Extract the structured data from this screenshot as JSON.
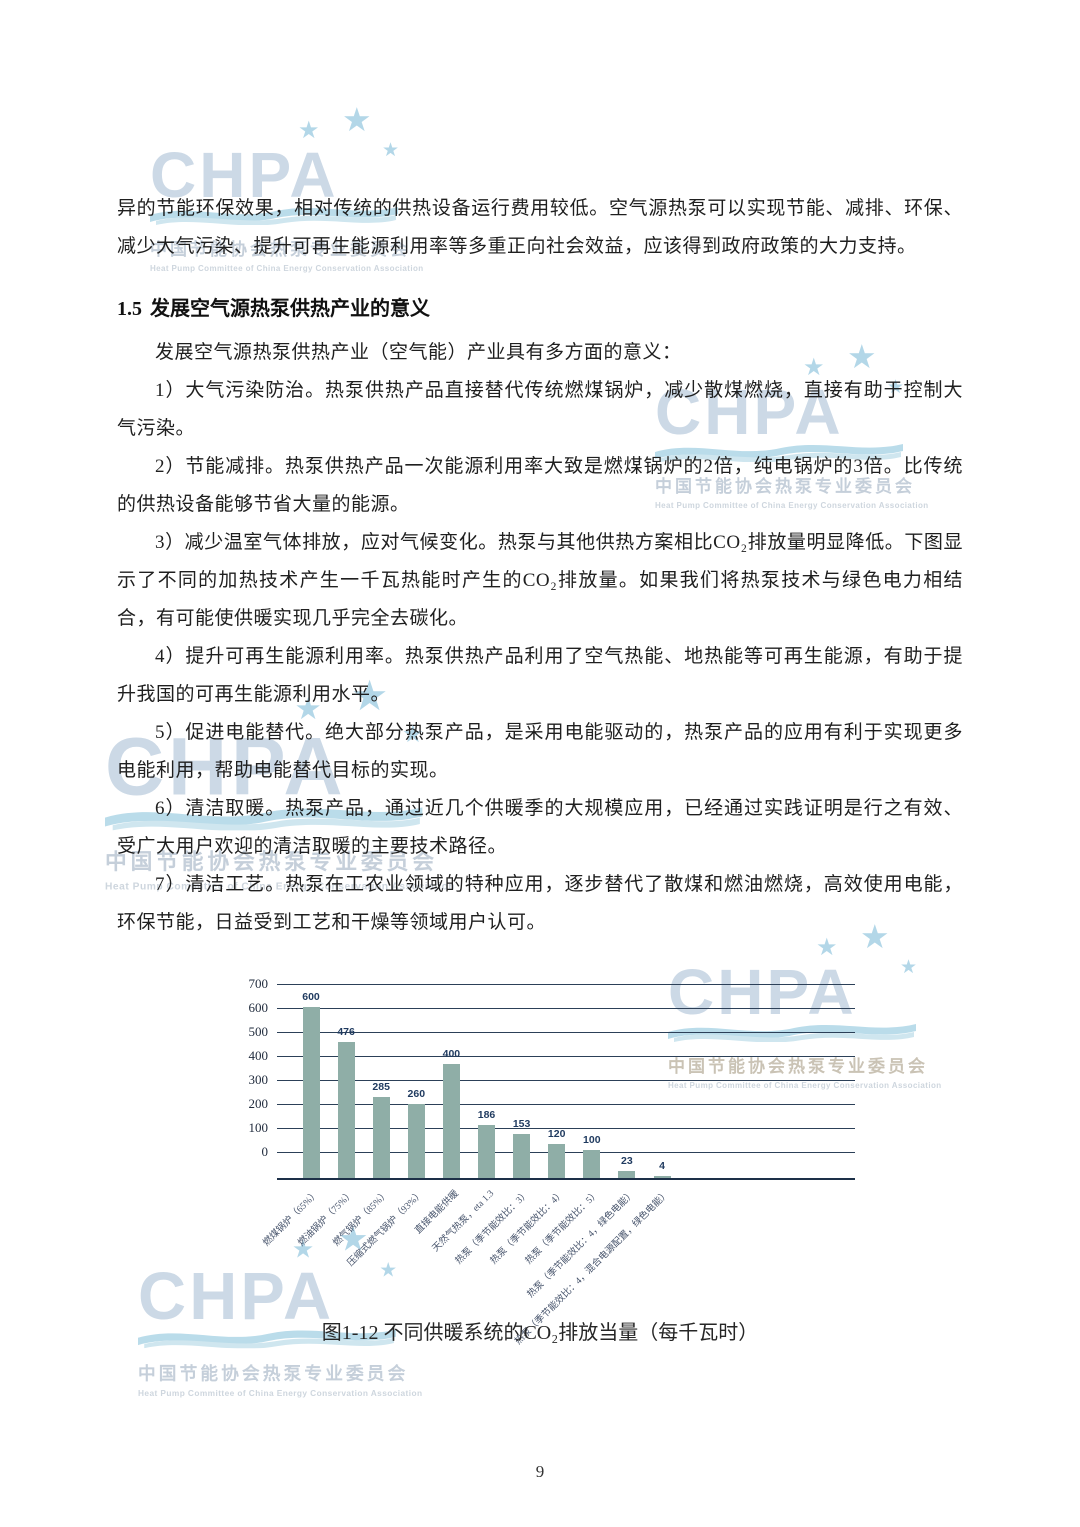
{
  "page": {
    "number": "9"
  },
  "body": {
    "p1": "异的节能环保效果，相对传统的供热设备运行费用较低。空气源热泵可以实现节能、减排、环保、减少大气污染、提升可再生能源利用率等多重正向社会效益，应该得到政府政策的大力支持。",
    "heading_num": "1.5",
    "heading": "发展空气源热泵供热产业的意义",
    "p2": "发展空气源热泵供热产业（空气能）产业具有多方面的意义：",
    "items": [
      "1）大气污染防治。热泵供热产品直接替代传统燃煤锅炉，减少散煤燃烧，直接有助于控制大气污染。",
      "2）节能减排。热泵供热产品一次能源利用率大致是燃煤锅炉的2倍，纯电锅炉的3倍。比传统的供热设备能够节省大量的能源。",
      "3）减少温室气体排放，应对气候变化。热泵与其他供热方案相比CO₂排放量明显降低。下图显示了不同的加热技术产生一千瓦热能时产生的CO₂排放量。如果我们将热泵技术与绿色电力相结合，有可能使供暖实现几乎完全去碳化。",
      "4）提升可再生能源利用率。热泵供热产品利用了空气热能、地热能等可再生能源，有助于提升我国的可再生能源利用水平。",
      "5）促进电能替代。绝大部分热泵产品，是采用电能驱动的，热泵产品的应用有利于实现更多电能利用，帮助电能替代目标的实现。",
      "6）清洁取暖。热泵产品，通过近几个供暖季的大规模应用，已经通过实践证明是行之有效、受广大用户欢迎的清洁取暖的主要技术路径。",
      "7）清洁工艺。热泵在工农业领域的特种应用，逐步替代了散煤和燃油燃烧，高效使用电能，环保节能，日益受到工艺和干燥等领域用户认可。"
    ],
    "caption": "图1-12 不同供暖系统的CO₂排放当量（每千瓦时）"
  },
  "chart_data": {
    "type": "bar",
    "title": "",
    "xlabel": "",
    "ylabel": "",
    "categories": [
      "燃煤锅炉（65%）",
      "燃油锅炉（75%）",
      "燃气锅炉（85%）",
      "压缩式燃气锅炉（93%）",
      "直接电能供暖",
      "天然气热泵，eta 1.3",
      "热泵（季节能效比：3）",
      "热泵（季节能效比：4）",
      "热泵（季节能效比：5）",
      "热泵（季节能效比：4，绿色电能）",
      "热泵（季节能效比：4，混合电源配置，绿色电能）"
    ],
    "values": [
      600,
      476,
      285,
      260,
      400,
      186,
      153,
      120,
      100,
      23,
      4
    ],
    "yticks": [
      0,
      100,
      200,
      300,
      400,
      500,
      600,
      700
    ],
    "ylim": [
      0,
      700
    ],
    "grid": true,
    "legend": null,
    "bar_color": "#8faea7",
    "gridline_color": "#2c4058",
    "caption": "图1-12 不同供暖系统的CO₂排放当量（每千瓦时）"
  },
  "watermark": {
    "letters": "CHPA",
    "star_glyph": "★",
    "cn": "中国节能协会热泵专业委员会",
    "en": "Heat Pump Committee of China Energy Conservation Association"
  }
}
